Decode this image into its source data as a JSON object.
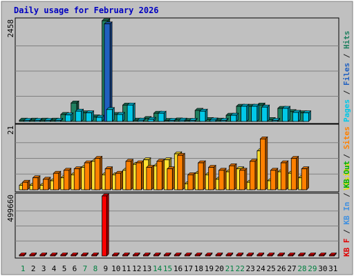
{
  "chart_data": {
    "type": "bar",
    "title": "Daily usage for February 2026",
    "days": [
      "1",
      "2",
      "3",
      "4",
      "5",
      "6",
      "7",
      "8",
      "9",
      "10",
      "11",
      "12",
      "13",
      "14",
      "15",
      "16",
      "17",
      "18",
      "19",
      "20",
      "21",
      "22",
      "23",
      "24",
      "25",
      "26",
      "27",
      "28",
      "29",
      "30",
      "31"
    ],
    "weekend_days": [
      "1",
      "7",
      "8",
      "14",
      "15",
      "21",
      "22",
      "28",
      "29"
    ],
    "panels": [
      {
        "id": "top",
        "max_label": "2458",
        "ymax": 2458,
        "legend": [
          {
            "text": "Pages",
            "color": "#00c8e8"
          },
          {
            "text": " / ",
            "color": "#202020"
          },
          {
            "text": "Files",
            "color": "#2060c0"
          },
          {
            "text": " / ",
            "color": "#202020"
          },
          {
            "text": "Hits",
            "color": "#208060"
          }
        ],
        "series": [
          {
            "name": "Hits",
            "color": "#208060",
            "values": [
              30,
              30,
              30,
              30,
              170,
              450,
              210,
              110,
              2458,
              170,
              400,
              30,
              70,
              200,
              15,
              35,
              15,
              270,
              45,
              30,
              150,
              370,
              370,
              400,
              45,
              320,
              240,
              210,
              0,
              0,
              0
            ]
          },
          {
            "name": "Files",
            "color": "#2060c0",
            "values": [
              0,
              0,
              0,
              0,
              0,
              0,
              0,
              0,
              2380,
              0,
              0,
              0,
              0,
              0,
              0,
              0,
              0,
              0,
              0,
              0,
              0,
              0,
              0,
              0,
              0,
              0,
              0,
              0,
              0,
              0,
              0
            ]
          },
          {
            "name": "Pages",
            "color": "#00c8e8",
            "values": [
              20,
              20,
              20,
              20,
              160,
              250,
              210,
              100,
              290,
              170,
              400,
              30,
              50,
              200,
              10,
              30,
              10,
              250,
              35,
              20,
              150,
              370,
              370,
              350,
              20,
              320,
              220,
              210,
              0,
              0,
              0
            ]
          }
        ]
      },
      {
        "id": "middle",
        "max_label": "21",
        "ymax": 21,
        "legend": [
          {
            "text": "Visits",
            "color": "#e8e000"
          },
          {
            "text": " / ",
            "color": "#202020"
          },
          {
            "text": "Sites",
            "color": "#ff8000"
          }
        ],
        "series": [
          {
            "name": "Visits",
            "color": "#ffe030",
            "values": [
              1.5,
              1.5,
              1.5,
              3,
              4,
              5,
              7.5,
              9.5,
              5,
              5,
              6.5,
              8.5,
              10,
              8,
              10,
              12,
              2,
              5.5,
              5,
              3.5,
              6,
              7,
              2.5,
              13,
              3,
              6,
              5.5,
              4,
              0,
              0,
              0
            ]
          },
          {
            "name": "Sites",
            "color": "#ff8000",
            "values": [
              2.5,
              4,
              3.5,
              5.5,
              6.5,
              7,
              9,
              10.5,
              7,
              5.5,
              9.5,
              9,
              7.5,
              9.5,
              7,
              11.5,
              5,
              9,
              7.5,
              6.5,
              8,
              6.5,
              9.5,
              17,
              6.5,
              9,
              10.5,
              7,
              0,
              0,
              0
            ]
          }
        ]
      },
      {
        "id": "bottom",
        "max_label": "499660",
        "ymax": 499660,
        "legend": [
          {
            "text": "KB F",
            "color": "#e00000"
          },
          {
            "text": " / ",
            "color": "#202020"
          },
          {
            "text": "KB In",
            "color": "#4090e0"
          },
          {
            "text": " / ",
            "color": "#202020"
          },
          {
            "text": "KB Out",
            "color": "#00b000"
          }
        ],
        "series": [
          {
            "name": "KB F",
            "color": "#ff0000",
            "values": [
              2000,
              2000,
              2000,
              2000,
              2000,
              2000,
              2000,
              2000,
              499660,
              2000,
              2000,
              2000,
              2000,
              2000,
              2000,
              2000,
              2000,
              2000,
              2000,
              2000,
              2000,
              2000,
              2000,
              2000,
              2000,
              2000,
              2000,
              2000,
              2000,
              2000,
              2000
            ]
          }
        ]
      }
    ],
    "colors": {
      "background": "#c0c0c0",
      "outer": "#ffffff",
      "frame": "#808080",
      "title": "#0000c0",
      "weekday": "#000000",
      "weekend": "#008040",
      "grid": "#808080"
    }
  }
}
